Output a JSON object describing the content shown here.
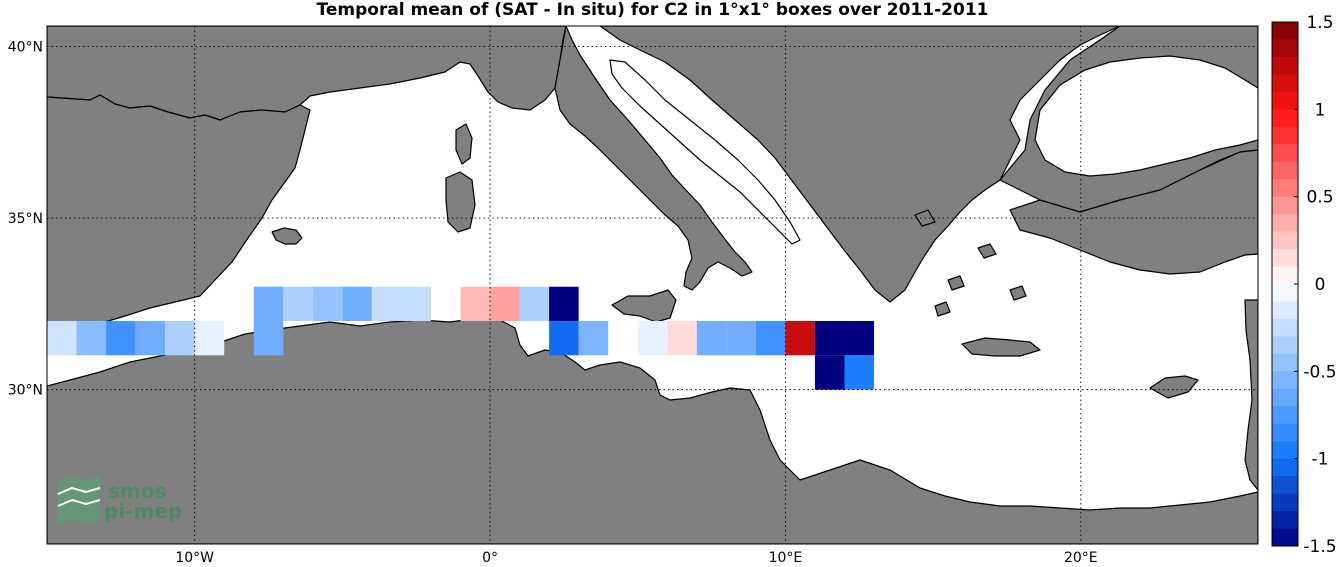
{
  "title": "Temporal mean of (SAT - In situ) for C2 in 1°x1° boxes over 2011-2011",
  "axes": {
    "lat_labels": [
      {
        "text": "40°N",
        "lat": 40
      },
      {
        "text": "35°N",
        "lat": 35
      },
      {
        "text": "30°N",
        "lat": 30
      }
    ],
    "lon_labels": [
      {
        "text": "10°W",
        "lon": -10
      },
      {
        "text": "0°",
        "lon": 0
      },
      {
        "text": "10°E",
        "lon": 10
      },
      {
        "text": "20°E",
        "lon": 20
      }
    ],
    "lon_range": [
      -15,
      26
    ],
    "lat_range": [
      25.5,
      40.6
    ]
  },
  "colorbar": {
    "ticks": [
      {
        "text": "1.5",
        "value": 1.5
      },
      {
        "text": "1",
        "value": 1
      },
      {
        "text": "0.5",
        "value": 0.5
      },
      {
        "text": "0",
        "value": 0
      },
      {
        "text": "-0.5",
        "value": -0.5
      },
      {
        "text": "-1",
        "value": -1
      },
      {
        "text": "-1.5",
        "value": -1.5
      }
    ],
    "range": [
      -1.5,
      1.5
    ],
    "steps": 30
  },
  "logo": {
    "line1": "smos",
    "line2": "pi-mep"
  },
  "colors": {
    "land": "#808080",
    "sea": "#ffffff",
    "coast": "#000000",
    "logo": "#4f8a66"
  },
  "chart_data": {
    "type": "heatmap",
    "title": "Temporal mean of (SAT - In situ) for C2 in 1°x1° boxes over 2011-2011",
    "x_unit": "longitude (degrees E)",
    "y_unit": "latitude (degrees N)",
    "value_range": [
      -1.5,
      1.5
    ],
    "cells": [
      {
        "lon": -14.5,
        "lat": 31.5,
        "value": -0.2
      },
      {
        "lon": -13.5,
        "lat": 31.5,
        "value": -0.5
      },
      {
        "lon": -12.5,
        "lat": 31.5,
        "value": -0.8
      },
      {
        "lon": -11.5,
        "lat": 31.5,
        "value": -0.6
      },
      {
        "lon": -10.5,
        "lat": 31.5,
        "value": -0.35
      },
      {
        "lon": -9.5,
        "lat": 31.5,
        "value": -0.1
      },
      {
        "lon": -7.5,
        "lat": 32.5,
        "value": -0.6
      },
      {
        "lon": -7.5,
        "lat": 31.5,
        "value": -0.6
      },
      {
        "lon": -6.5,
        "lat": 32.5,
        "value": -0.35
      },
      {
        "lon": -5.5,
        "lat": 32.5,
        "value": -0.45
      },
      {
        "lon": -4.5,
        "lat": 32.5,
        "value": -0.6
      },
      {
        "lon": -3.5,
        "lat": 32.5,
        "value": -0.25
      },
      {
        "lon": -2.5,
        "lat": 32.5,
        "value": -0.25
      },
      {
        "lon": -0.5,
        "lat": 32.5,
        "value": 0.3
      },
      {
        "lon": 0.5,
        "lat": 32.5,
        "value": 0.4
      },
      {
        "lon": 1.5,
        "lat": 32.5,
        "value": -0.35
      },
      {
        "lon": 2.5,
        "lat": 32.5,
        "value": -1.5
      },
      {
        "lon": 2.5,
        "lat": 31.5,
        "value": -1.05
      },
      {
        "lon": 3.5,
        "lat": 31.5,
        "value": -0.55
      },
      {
        "lon": 5.5,
        "lat": 31.5,
        "value": -0.1
      },
      {
        "lon": 6.5,
        "lat": 31.5,
        "value": 0.15
      },
      {
        "lon": 7.5,
        "lat": 31.5,
        "value": -0.6
      },
      {
        "lon": 8.5,
        "lat": 31.5,
        "value": -0.6
      },
      {
        "lon": 9.5,
        "lat": 31.5,
        "value": -0.8
      },
      {
        "lon": 10.5,
        "lat": 31.5,
        "value": 1.2
      },
      {
        "lon": 11.5,
        "lat": 31.5,
        "value": -1.5
      },
      {
        "lon": 12.5,
        "lat": 31.5,
        "value": -1.5
      },
      {
        "lon": 11.5,
        "lat": 30.5,
        "value": -1.5
      },
      {
        "lon": 12.5,
        "lat": 30.5,
        "value": -0.95
      }
    ]
  }
}
